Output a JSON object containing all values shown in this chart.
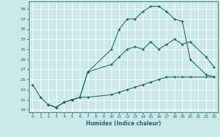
{
  "xlabel": "Humidex (Indice chaleur)",
  "bg_color": "#cce8e8",
  "line_color": "#1a6b6b",
  "grid_color": "#ffffff",
  "xlim": [
    -0.5,
    23.5
  ],
  "ylim": [
    18.5,
    40.5
  ],
  "xticks": [
    0,
    1,
    2,
    3,
    4,
    5,
    6,
    7,
    8,
    9,
    10,
    11,
    12,
    13,
    14,
    15,
    16,
    17,
    18,
    19,
    20,
    21,
    22,
    23
  ],
  "yticks": [
    19,
    21,
    23,
    25,
    27,
    29,
    31,
    33,
    35,
    37,
    39
  ],
  "c1x": [
    0,
    1,
    2,
    3,
    4,
    5,
    6,
    7,
    10,
    11,
    12,
    13,
    14,
    15,
    16,
    17,
    18,
    19,
    20,
    22,
    23
  ],
  "c1y": [
    24,
    21.5,
    20,
    19.5,
    20.5,
    21,
    21.5,
    26.5,
    31,
    35,
    37,
    37,
    38.5,
    39.5,
    39.5,
    38.5,
    37,
    36.5,
    29,
    26,
    25.5
  ],
  "c2x": [
    2,
    3,
    4,
    5,
    6,
    7,
    10,
    11,
    12,
    13,
    14,
    15,
    16,
    17,
    18,
    19,
    20,
    22,
    23
  ],
  "c2y": [
    20,
    19.5,
    20.5,
    21,
    21.5,
    26.5,
    28,
    29.5,
    31,
    31.5,
    31,
    32.5,
    31,
    32,
    33,
    32,
    32.5,
    29.5,
    27.5
  ],
  "c3x": [
    2,
    3,
    4,
    5,
    6,
    7,
    10,
    11,
    12,
    13,
    14,
    15,
    16,
    17,
    18,
    19,
    20,
    22,
    23
  ],
  "c3y": [
    20,
    19.5,
    20.5,
    21,
    21.5,
    21.5,
    22,
    22.5,
    23,
    23.5,
    24,
    24.5,
    25,
    25.5,
    25.5,
    25.5,
    25.5,
    25.5,
    25.5
  ]
}
